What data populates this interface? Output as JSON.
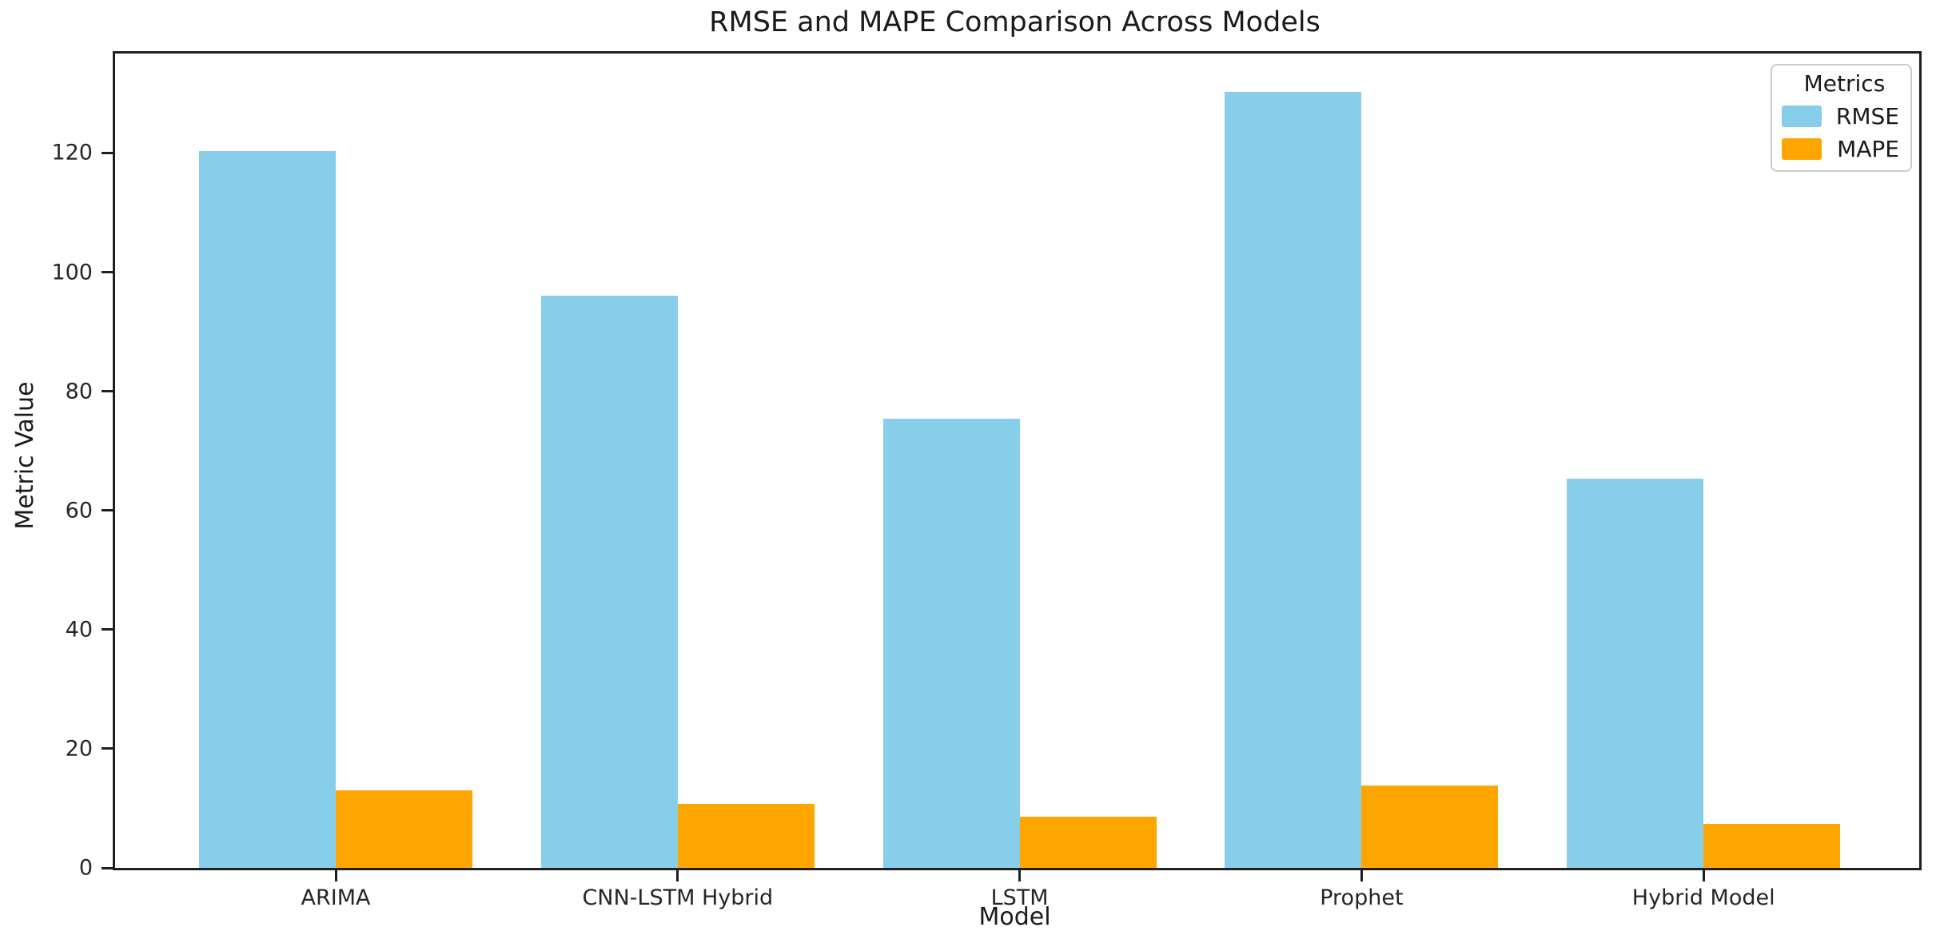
{
  "chart_data": {
    "type": "bar",
    "title": "RMSE and MAPE Comparison Across Models",
    "xlabel": "Model",
    "ylabel": "Metric Value",
    "categories": [
      "ARIMA",
      "CNN-LSTM Hybrid",
      "LSTM",
      "Prophet",
      "Hybrid Model"
    ],
    "series": [
      {
        "name": "RMSE",
        "color": "#87CEEB",
        "values": [
          120.3,
          96.0,
          75.4,
          130.3,
          65.4
        ]
      },
      {
        "name": "MAPE",
        "color": "#FFA500",
        "values": [
          13.0,
          10.8,
          8.6,
          13.8,
          7.4
        ]
      }
    ],
    "legend_title": "Metrics",
    "legend_position": "upper right",
    "ylim": [
      0,
      136.7
    ],
    "yticks": [
      0,
      20,
      40,
      60,
      80,
      100,
      120
    ],
    "grid": false,
    "colors": {
      "rmse": "#87CEEB",
      "mape": "#FFA500",
      "spine": "#1f1f1f",
      "text": "#1a1a1a"
    }
  }
}
